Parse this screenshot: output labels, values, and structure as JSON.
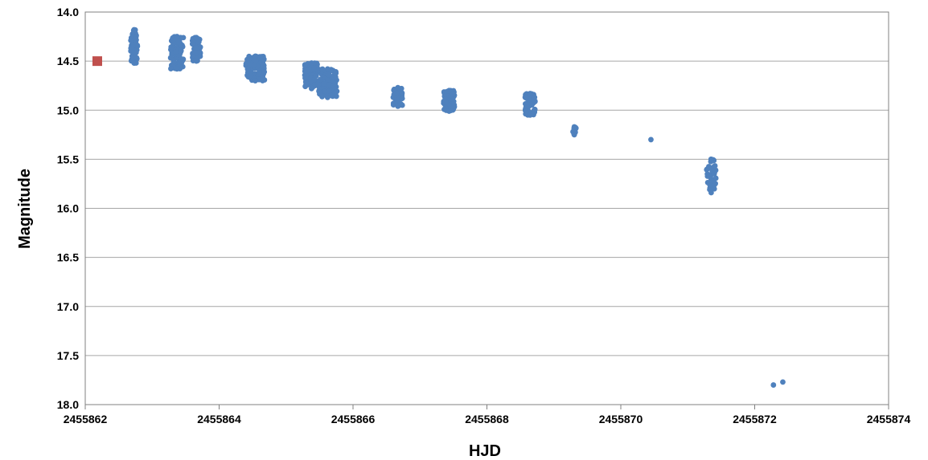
{
  "chart_data": {
    "type": "scatter",
    "title": "",
    "xlabel": "HJD",
    "ylabel": "Magnitude",
    "xlim": [
      2455862,
      2455874
    ],
    "ylim": [
      14.0,
      18.0
    ],
    "y_inverted": true,
    "grid": "horizontal",
    "legend": "none",
    "x_ticks": [
      "2455862",
      "2455864",
      "2455866",
      "2455868",
      "2455870",
      "2455872",
      "2455874"
    ],
    "y_ticks": [
      "14.0",
      "14.5",
      "15.0",
      "15.5",
      "16.0",
      "16.5",
      "17.0",
      "17.5",
      "18.0"
    ],
    "colors": {
      "series_main": "#4f81bd",
      "series_marker": "#c0504d",
      "grid": "#a6a6a6"
    },
    "series": [
      {
        "marker": "circle",
        "color": "#4f81bd",
        "clusters": [
          {
            "x_range": [
              2455862.68,
              2455862.78
            ],
            "y_range": [
              14.18,
              14.52
            ],
            "n": 60
          },
          {
            "x_range": [
              2455863.27,
              2455863.47
            ],
            "y_range": [
              14.25,
              14.58
            ],
            "n": 90
          },
          {
            "x_range": [
              2455863.6,
              2455863.72
            ],
            "y_range": [
              14.26,
              14.5
            ],
            "n": 60
          },
          {
            "x_range": [
              2455864.4,
              2455864.68
            ],
            "y_range": [
              14.45,
              14.7
            ],
            "n": 110
          },
          {
            "x_range": [
              2455865.28,
              2455865.48
            ],
            "y_range": [
              14.52,
              14.78
            ],
            "n": 80
          },
          {
            "x_range": [
              2455865.48,
              2455865.76
            ],
            "y_range": [
              14.58,
              14.87
            ],
            "n": 110
          },
          {
            "x_range": [
              2455866.6,
              2455866.74
            ],
            "y_range": [
              14.77,
              14.96
            ],
            "n": 45
          },
          {
            "x_range": [
              2455867.35,
              2455867.52
            ],
            "y_range": [
              14.8,
              15.01
            ],
            "n": 60
          },
          {
            "x_range": [
              2455868.57,
              2455868.72
            ],
            "y_range": [
              14.83,
              15.05
            ],
            "n": 60
          },
          {
            "x_range": [
              2455869.28,
              2455869.33
            ],
            "y_range": [
              15.17,
              15.25
            ],
            "n": 8
          },
          {
            "x_range": [
              2455871.28,
              2455871.42
            ],
            "y_range": [
              15.5,
              15.84
            ],
            "n": 40
          }
        ],
        "points": [
          {
            "x": 2455870.45,
            "y": 15.3
          },
          {
            "x": 2455872.28,
            "y": 17.8
          },
          {
            "x": 2455872.42,
            "y": 17.77
          }
        ]
      },
      {
        "marker": "square",
        "color": "#c0504d",
        "points": [
          {
            "x": 2455862.18,
            "y": 14.5
          }
        ]
      }
    ]
  }
}
